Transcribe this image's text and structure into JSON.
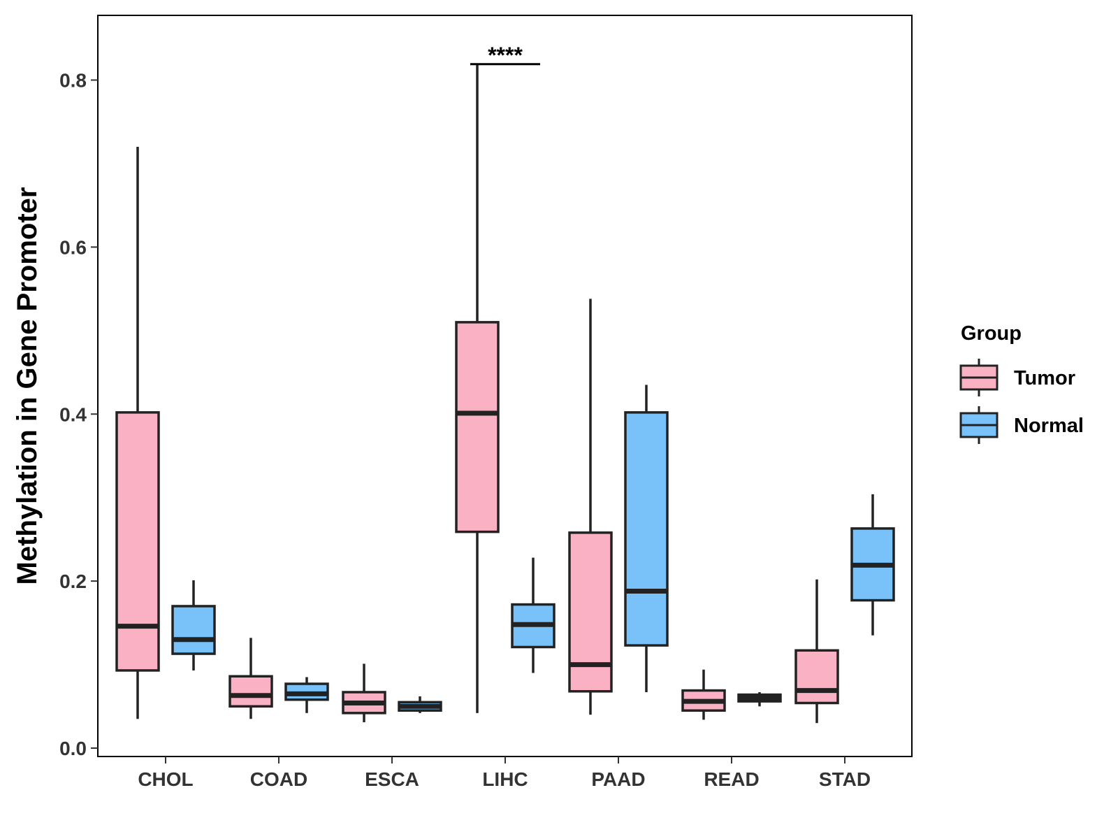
{
  "chart_data": {
    "type": "boxplot",
    "title": "",
    "xlabel": "",
    "ylabel": "Methylation in Gene Promoter",
    "ylim": [
      -0.01,
      0.88
    ],
    "yticks": [
      0.0,
      0.2,
      0.4,
      0.6,
      0.8
    ],
    "ytick_labels": [
      "0.0",
      "0.2",
      "0.4",
      "0.6",
      "0.8"
    ],
    "categories": [
      "CHOL",
      "COAD",
      "ESCA",
      "LIHC",
      "PAAD",
      "READ",
      "STAD"
    ],
    "legend": {
      "title": "Group",
      "position": "right",
      "entries": [
        {
          "name": "Tumor",
          "color": "#FBB1C4"
        },
        {
          "name": "Normal",
          "color": "#78C1F9"
        }
      ]
    },
    "series": [
      {
        "name": "Tumor",
        "color": "#FBB1C4",
        "boxes": [
          {
            "category": "CHOL",
            "min": 0.035,
            "q1": 0.093,
            "median": 0.146,
            "q3": 0.402,
            "max": 0.72
          },
          {
            "category": "COAD",
            "min": 0.035,
            "q1": 0.05,
            "median": 0.063,
            "q3": 0.086,
            "max": 0.132
          },
          {
            "category": "ESCA",
            "min": 0.031,
            "q1": 0.042,
            "median": 0.054,
            "q3": 0.067,
            "max": 0.101
          },
          {
            "category": "LIHC",
            "min": 0.042,
            "q1": 0.259,
            "median": 0.401,
            "q3": 0.51,
            "max": 0.819
          },
          {
            "category": "PAAD",
            "min": 0.04,
            "q1": 0.068,
            "median": 0.1,
            "q3": 0.258,
            "max": 0.538
          },
          {
            "category": "READ",
            "min": 0.034,
            "q1": 0.045,
            "median": 0.056,
            "q3": 0.069,
            "max": 0.094
          },
          {
            "category": "STAD",
            "min": 0.03,
            "q1": 0.054,
            "median": 0.069,
            "q3": 0.117,
            "max": 0.202
          }
        ]
      },
      {
        "name": "Normal",
        "color": "#78C1F9",
        "boxes": [
          {
            "category": "CHOL",
            "min": 0.093,
            "q1": 0.113,
            "median": 0.13,
            "q3": 0.17,
            "max": 0.201
          },
          {
            "category": "COAD",
            "min": 0.042,
            "q1": 0.058,
            "median": 0.065,
            "q3": 0.077,
            "max": 0.085
          },
          {
            "category": "ESCA",
            "min": 0.042,
            "q1": 0.045,
            "median": 0.05,
            "q3": 0.055,
            "max": 0.062
          },
          {
            "category": "LIHC",
            "min": 0.09,
            "q1": 0.121,
            "median": 0.148,
            "q3": 0.172,
            "max": 0.228
          },
          {
            "category": "PAAD",
            "min": 0.067,
            "q1": 0.123,
            "median": 0.188,
            "q3": 0.402,
            "max": 0.435
          },
          {
            "category": "READ",
            "min": 0.05,
            "q1": 0.056,
            "median": 0.06,
            "q3": 0.064,
            "max": 0.067
          },
          {
            "category": "STAD",
            "min": 0.135,
            "q1": 0.177,
            "median": 0.219,
            "q3": 0.263,
            "max": 0.304
          }
        ]
      }
    ],
    "annotations": [
      {
        "category": "LIHC",
        "text": "****",
        "y": 0.819
      }
    ],
    "grid": false
  }
}
